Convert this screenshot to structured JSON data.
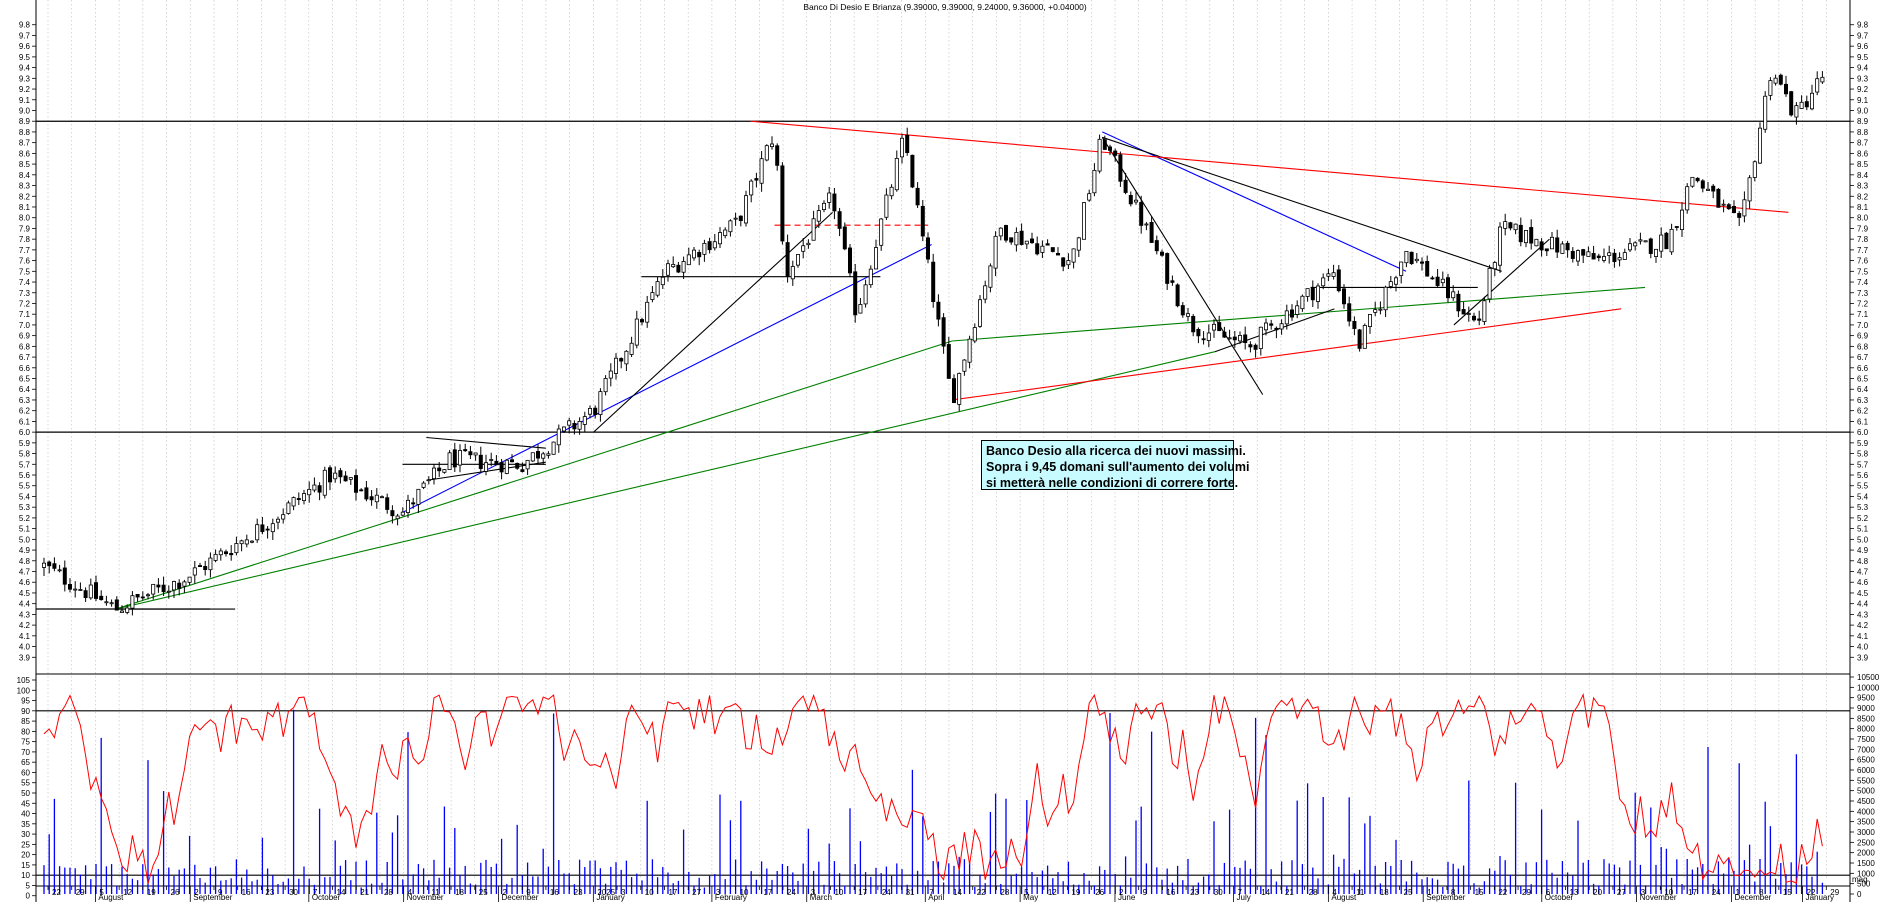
{
  "chart_data": {
    "type": "candlestick",
    "title": "Banco Di Desio E Brianza (9.39000, 9.39000, 9.24000, 9.36000, +0.04000)",
    "price_axis": {
      "ylim": [
        3.8,
        9.9
      ],
      "tick_labels": [
        "3.9",
        "4.0",
        "4.1",
        "4.2",
        "4.3",
        "4.4",
        "4.5",
        "4.6",
        "4.7",
        "4.8",
        "4.9",
        "5.0",
        "5.1",
        "5.2",
        "5.3",
        "5.4",
        "5.5",
        "5.6",
        "5.7",
        "5.8",
        "5.9",
        "6.0",
        "6.1",
        "6.2",
        "6.3",
        "6.4",
        "6.5",
        "6.6",
        "6.7",
        "6.8",
        "6.9",
        "7.0",
        "7.1",
        "7.2",
        "7.3",
        "7.4",
        "7.5",
        "7.6",
        "7.7",
        "7.8",
        "7.9",
        "8.0",
        "8.1",
        "8.2",
        "8.3",
        "8.4",
        "8.5",
        "8.6",
        "8.7",
        "8.8",
        "8.9",
        "9.0",
        "9.1",
        "9.2",
        "9.3",
        "9.4",
        "9.5",
        "9.6",
        "9.7",
        "9.8"
      ]
    },
    "oscillator_axis": {
      "ylim": [
        -5,
        105
      ],
      "tick_labels": [
        "-5",
        "0",
        "5",
        "10",
        "15",
        "20",
        "25",
        "30",
        "35",
        "40",
        "45",
        "50",
        "55",
        "60",
        "65",
        "70",
        "75",
        "80",
        "85",
        "90",
        "95",
        "100",
        "105"
      ],
      "reference_lines": [
        90,
        10
      ]
    },
    "volume_axis": {
      "ylim": [
        0,
        10500
      ],
      "tick_labels": [
        "0",
        "500",
        "1000",
        "1500",
        "2000",
        "2500",
        "3000",
        "3500",
        "4000",
        "4500",
        "5000",
        "5500",
        "6000",
        "6500",
        "7000",
        "7500",
        "8000",
        "8500",
        "9000",
        "9500",
        "10000",
        "10500"
      ]
    },
    "x_axis": {
      "days": [
        "22",
        "29",
        "5",
        "12",
        "19",
        "26",
        "2",
        "9",
        "16",
        "23",
        "30",
        "7",
        "14",
        "21",
        "28",
        "4",
        "11",
        "18",
        "25",
        "2",
        "9",
        "16",
        "23",
        "2025",
        "3",
        "10",
        "17",
        "27",
        "3",
        "10",
        "17",
        "24",
        "3",
        "10",
        "17",
        "24",
        "31",
        "7",
        "14",
        "22",
        "28",
        "5",
        "12",
        "19",
        "26",
        "2",
        "9",
        "16",
        "23",
        "30",
        "7",
        "14",
        "21",
        "28",
        "4",
        "11",
        "18",
        "25",
        "1",
        "8",
        "15",
        "22",
        "29",
        "6",
        "13",
        "20",
        "27",
        "3",
        "10",
        "17",
        "24",
        "1",
        "8",
        "15",
        "22",
        "29"
      ],
      "months": [
        "August",
        "September",
        "October",
        "November",
        "December",
        "January",
        "February",
        "March",
        "April",
        "May",
        "June",
        "July",
        "August",
        "September",
        "October",
        "November",
        "December",
        "January"
      ],
      "right_edge_label": "mag"
    },
    "horizontal_levels": [
      8.9,
      6.0,
      4.35
    ],
    "price_series_key_points": [
      [
        "2024-07-15",
        4.75
      ],
      [
        "2024-08-05",
        4.35
      ],
      [
        "2024-08-26",
        4.65
      ],
      [
        "2024-09-16",
        5.1
      ],
      [
        "2024-10-07",
        5.6
      ],
      [
        "2024-10-28",
        5.25
      ],
      [
        "2024-11-11",
        5.75
      ],
      [
        "2024-12-02",
        5.7
      ],
      [
        "2024-12-23",
        6.2
      ],
      [
        "2025-01-13",
        7.5
      ],
      [
        "2025-02-03",
        7.95
      ],
      [
        "2025-02-14",
        8.8
      ],
      [
        "2025-02-17",
        7.45
      ],
      [
        "2025-03-03",
        8.2
      ],
      [
        "2025-03-10",
        7.1
      ],
      [
        "2025-03-24",
        8.75
      ],
      [
        "2025-04-07",
        6.3
      ],
      [
        "2025-04-21",
        7.9
      ],
      [
        "2025-05-12",
        7.6
      ],
      [
        "2025-05-21",
        8.75
      ],
      [
        "2025-06-16",
        7.0
      ],
      [
        "2025-07-03",
        6.8
      ],
      [
        "2025-07-28",
        7.5
      ],
      [
        "2025-08-04",
        6.8
      ],
      [
        "2025-08-18",
        7.7
      ],
      [
        "2025-09-08",
        7.0
      ],
      [
        "2025-09-15",
        7.9
      ],
      [
        "2025-10-13",
        7.6
      ],
      [
        "2025-11-03",
        7.8
      ],
      [
        "2025-11-10",
        8.4
      ],
      [
        "2025-11-24",
        7.9
      ],
      [
        "2025-12-03",
        9.4
      ],
      [
        "2025-12-10",
        8.95
      ],
      [
        "2025-12-19",
        9.36
      ]
    ],
    "last_bar": {
      "open": 9.39,
      "high": 9.39,
      "low": 9.24,
      "close": 9.36,
      "change": 0.04
    },
    "oscillator_series_color": "#ff0000",
    "volume_series_color": "#0000ff",
    "trendline_colors": {
      "black": "#000000",
      "blue": "#0000ff",
      "green": "#008000",
      "red": "#ff0000"
    },
    "grid": true
  },
  "annotation": {
    "lines": [
      "Banco Desio alla ricerca dei nuovi massimi.",
      "Sopra i 9,45 domani sull'aumento dei volumi",
      "si metterà nelle condizioni di correre forte."
    ],
    "background": "#c8fbff"
  }
}
